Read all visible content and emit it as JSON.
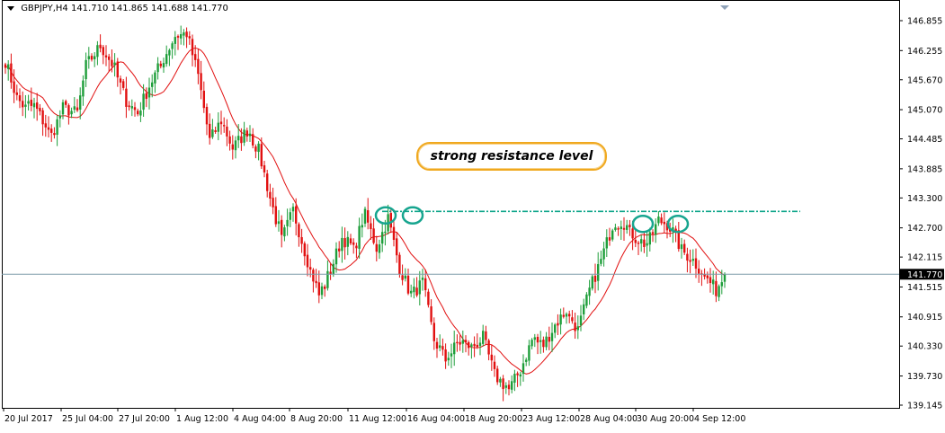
{
  "header": {
    "symbol": "GBPJPY,H4",
    "ohlc": "141.710 141.865 141.688 141.770"
  },
  "current_price_label": "141.770",
  "annotation": {
    "text": "strong resistance level"
  },
  "colors": {
    "bull": "#1e9e3a",
    "bear": "#e11010",
    "ma_line": "#e11010",
    "resistance": "#0ea58a",
    "highlight_circle": "#17a58f",
    "annotation_border": "#f0a81e",
    "current_price_line": "#7c9aa8",
    "axis": "#000000"
  },
  "chart_data": {
    "type": "candlestick",
    "instrument": "GBPJPY",
    "timeframe": "H4",
    "ylim": [
      139.145,
      147.2
    ],
    "y_ticks": [
      "146.855",
      "146.255",
      "145.670",
      "145.070",
      "144.485",
      "143.885",
      "143.300",
      "142.700",
      "142.115",
      "141.515",
      "140.915",
      "140.330",
      "139.730",
      "139.145"
    ],
    "x_ticks": [
      "20 Jul 2017",
      "25 Jul 04:00",
      "27 Jul 20:00",
      "1 Aug 12:00",
      "4 Aug 04:00",
      "8 Aug 20:00",
      "11 Aug 12:00",
      "16 Aug 04:00",
      "18 Aug 20:00",
      "23 Aug 12:00",
      "28 Aug 04:00",
      "30 Aug 20:00",
      "4 Sep 12:00"
    ],
    "current_price": 141.77,
    "resistance_level": 143.03,
    "moving_average": "red line, short-period MA",
    "anchors": [
      [
        0,
        146.05
      ],
      [
        4,
        145.3
      ],
      [
        7,
        145.1
      ],
      [
        10,
        145.15
      ],
      [
        16,
        144.55
      ],
      [
        20,
        145.1
      ],
      [
        25,
        145.0
      ],
      [
        28,
        145.95
      ],
      [
        33,
        146.35
      ],
      [
        37,
        146.0
      ],
      [
        42,
        145.25
      ],
      [
        46,
        145.0
      ],
      [
        50,
        145.55
      ],
      [
        55,
        146.1
      ],
      [
        59,
        146.55
      ],
      [
        63,
        146.6
      ],
      [
        67,
        145.75
      ],
      [
        71,
        144.45
      ],
      [
        75,
        144.85
      ],
      [
        79,
        144.3
      ],
      [
        84,
        144.65
      ],
      [
        88,
        144.25
      ],
      [
        92,
        143.3
      ],
      [
        96,
        142.45
      ],
      [
        100,
        143.05
      ],
      [
        105,
        142.05
      ],
      [
        109,
        141.35
      ],
      [
        113,
        141.85
      ],
      [
        117,
        142.5
      ],
      [
        121,
        142.3
      ],
      [
        125,
        142.95
      ],
      [
        129,
        142.3
      ],
      [
        133,
        142.9
      ],
      [
        137,
        141.9
      ],
      [
        141,
        141.35
      ],
      [
        145,
        141.6
      ],
      [
        149,
        140.45
      ],
      [
        153,
        140.05
      ],
      [
        158,
        140.45
      ],
      [
        162,
        140.3
      ],
      [
        166,
        140.5
      ],
      [
        170,
        139.75
      ],
      [
        175,
        139.45
      ],
      [
        179,
        139.85
      ],
      [
        183,
        140.45
      ],
      [
        187,
        140.35
      ],
      [
        191,
        140.75
      ],
      [
        195,
        141.05
      ],
      [
        199,
        140.65
      ],
      [
        203,
        141.45
      ],
      [
        207,
        142.05
      ],
      [
        211,
        142.75
      ],
      [
        215,
        142.8
      ],
      [
        219,
        142.5
      ],
      [
        223,
        142.35
      ],
      [
        227,
        142.85
      ],
      [
        231,
        142.75
      ],
      [
        235,
        142.25
      ],
      [
        239,
        142.05
      ],
      [
        243,
        141.75
      ],
      [
        247,
        141.45
      ],
      [
        250,
        141.77
      ]
    ]
  }
}
